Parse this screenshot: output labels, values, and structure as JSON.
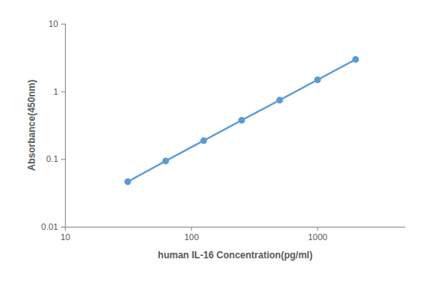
{
  "chart_data": {
    "type": "line",
    "x_label": "human IL-16 Concentration(pg/ml)",
    "y_label": "Absorbance(450nm)",
    "x": [
      31.25,
      62.5,
      125,
      250,
      500,
      1000,
      2000
    ],
    "series": [
      {
        "name": "human IL-16",
        "color": "#5b9bd5",
        "values": [
          0.047,
          0.095,
          0.19,
          0.38,
          0.75,
          1.5,
          3.0
        ],
        "marker": "circle"
      }
    ],
    "log": true,
    "xlim": [
      10,
      5000
    ],
    "xticks": [
      10,
      100,
      1000
    ],
    "ylim": [
      0.01,
      10
    ],
    "yticks": [
      0.01,
      0.1,
      1,
      10
    ],
    "grid": false
  }
}
